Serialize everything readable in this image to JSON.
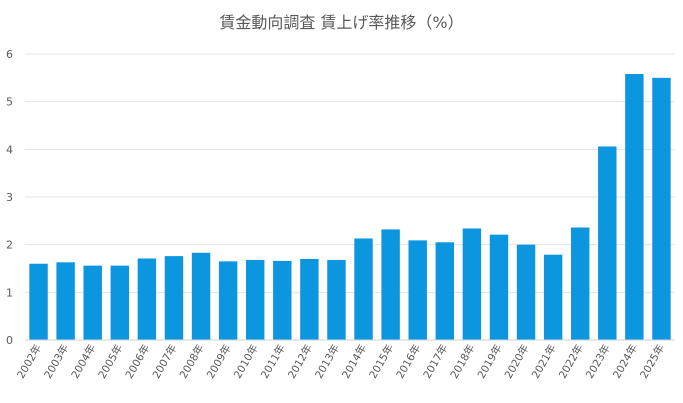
{
  "chart_data": {
    "type": "bar",
    "title": "賃金動向調査 賃上げ率推移（%）",
    "xlabel": "",
    "ylabel": "",
    "ylim": [
      0,
      6
    ],
    "yticks": [
      0,
      1,
      2,
      3,
      4,
      5,
      6
    ],
    "grid": true,
    "legend": "none",
    "bar_color": "#0B96DF",
    "categories": [
      "2002年",
      "2003年",
      "2004年",
      "2005年",
      "2006年",
      "2007年",
      "2008年",
      "2009年",
      "2010年",
      "2011年",
      "2012年",
      "2013年",
      "2014年",
      "2015年",
      "2016年",
      "2017年",
      "2018年",
      "2019年",
      "2020年",
      "2021年",
      "2022年",
      "2023年",
      "2024年",
      "2025年"
    ],
    "values": [
      1.6,
      1.63,
      1.56,
      1.56,
      1.71,
      1.76,
      1.83,
      1.65,
      1.68,
      1.66,
      1.7,
      1.68,
      2.13,
      2.32,
      2.09,
      2.05,
      2.34,
      2.21,
      2.0,
      1.79,
      2.36,
      4.06,
      5.58,
      5.5
    ]
  }
}
